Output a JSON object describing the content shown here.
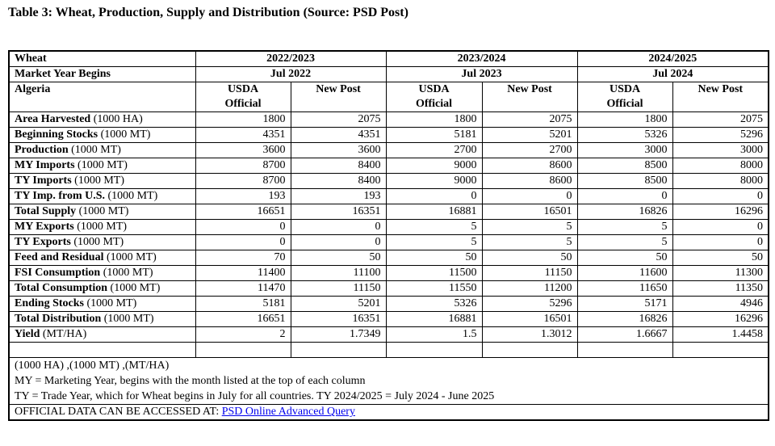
{
  "title": "Table 3: Wheat, Production, Supply and Distribution (Source: PSD Post)",
  "table": {
    "corner_labels": {
      "commodity": "Wheat",
      "market_year": "Market Year Begins",
      "country": "Algeria"
    },
    "year_groups": [
      {
        "year": "2022/2023",
        "market_year_begins": "Jul 2022"
      },
      {
        "year": "2023/2024",
        "market_year_begins": "Jul 2023"
      },
      {
        "year": "2024/2025",
        "market_year_begins": "Jul 2024"
      }
    ],
    "column_headers": [
      "USDA\nOfficial",
      "New Post"
    ],
    "rows": [
      {
        "label": "Area Harvested",
        "unit": "(1000 HA)",
        "values": [
          "1800",
          "2075",
          "1800",
          "2075",
          "1800",
          "2075"
        ]
      },
      {
        "label": "Beginning Stocks",
        "unit": "(1000 MT)",
        "values": [
          "4351",
          "4351",
          "5181",
          "5201",
          "5326",
          "5296"
        ]
      },
      {
        "label": "Production",
        "unit": "(1000 MT)",
        "values": [
          "3600",
          "3600",
          "2700",
          "2700",
          "3000",
          "3000"
        ]
      },
      {
        "label": "MY Imports",
        "unit": "(1000 MT)",
        "values": [
          "8700",
          "8400",
          "9000",
          "8600",
          "8500",
          "8000"
        ]
      },
      {
        "label": "TY Imports",
        "unit": "(1000 MT)",
        "values": [
          "8700",
          "8400",
          "9000",
          "8600",
          "8500",
          "8000"
        ]
      },
      {
        "label": "TY Imp. from U.S.",
        "unit": "(1000 MT)",
        "values": [
          "193",
          "193",
          "0",
          "0",
          "0",
          "0"
        ]
      },
      {
        "label": "Total Supply",
        "unit": "(1000 MT)",
        "values": [
          "16651",
          "16351",
          "16881",
          "16501",
          "16826",
          "16296"
        ]
      },
      {
        "label": "MY Exports",
        "unit": "(1000 MT)",
        "values": [
          "0",
          "0",
          "5",
          "5",
          "5",
          "0"
        ]
      },
      {
        "label": "TY Exports",
        "unit": "(1000 MT)",
        "values": [
          "0",
          "0",
          "5",
          "5",
          "5",
          "0"
        ]
      },
      {
        "label": "Feed and Residual",
        "unit": "(1000 MT)",
        "values": [
          "70",
          "50",
          "50",
          "50",
          "50",
          "50"
        ]
      },
      {
        "label": "FSI Consumption",
        "unit": "(1000 MT)",
        "values": [
          "11400",
          "11100",
          "11500",
          "11150",
          "11600",
          "11300"
        ]
      },
      {
        "label": "Total Consumption",
        "unit": "(1000 MT)",
        "values": [
          "11470",
          "11150",
          "11550",
          "11200",
          "11650",
          "11350"
        ]
      },
      {
        "label": "Ending Stocks",
        "unit": "(1000 MT)",
        "values": [
          "5181",
          "5201",
          "5326",
          "5296",
          "5171",
          "4946"
        ]
      },
      {
        "label": "Total Distribution",
        "unit": "(1000 MT)",
        "values": [
          "16651",
          "16351",
          "16881",
          "16501",
          "16826",
          "16296"
        ]
      },
      {
        "label": "Yield",
        "unit": "(MT/HA)",
        "values": [
          "2",
          "1.7349",
          "1.5",
          "1.3012",
          "1.6667",
          "1.4458"
        ]
      }
    ]
  },
  "footnotes": {
    "units": "(1000 HA) ,(1000 MT) ,(MT/HA)",
    "my": "MY = Marketing Year, begins with the month listed at the top of each column",
    "ty": "TY = Trade Year, which for Wheat begins in July for all countries. TY 2024/2025 = July 2024 - June 2025"
  },
  "official_data": {
    "prefix": "OFFICIAL DATA CAN BE ACCESSED AT: ",
    "link_label": "PSD Online Advanced Query"
  },
  "colors": {
    "text": "#000000",
    "border": "#000000",
    "link": "#0000EE",
    "background": "#FFFFFF"
  }
}
